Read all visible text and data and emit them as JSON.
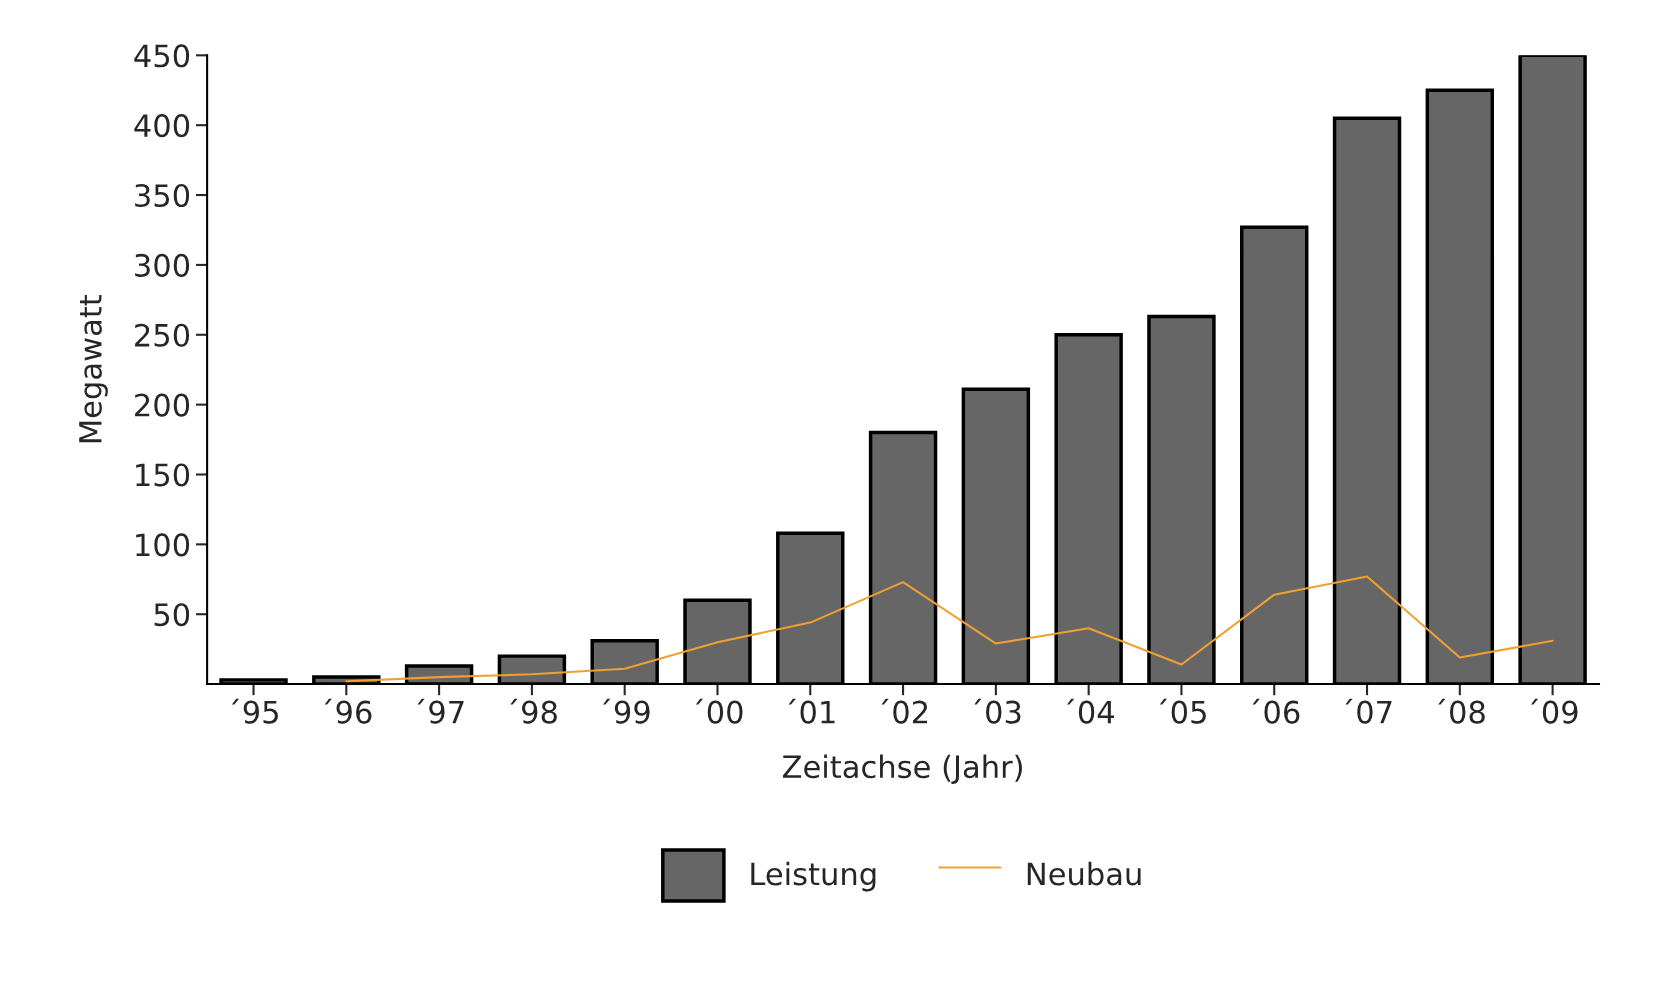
{
  "chart_data": {
    "type": "bar",
    "xlabel": "Zeitachse (Jahr)",
    "ylabel": "Megawatt",
    "categories": [
      "´95",
      "´96",
      "´97",
      "´98",
      "´99",
      "´00",
      "´01",
      "´02",
      "´03",
      "´04",
      "´05",
      "´06",
      "´07",
      "´08",
      "´09"
    ],
    "series": [
      {
        "name": "Leistung",
        "color": "#666666",
        "values": [
          3,
          5,
          13,
          20,
          31,
          60,
          108,
          180,
          211,
          250,
          263,
          327,
          405,
          425,
          450
        ]
      },
      {
        "name": "Neubau",
        "type": "line",
        "color": "#f0a030",
        "values": [
          null,
          2,
          5,
          7,
          11,
          30,
          44,
          73,
          29,
          40,
          14,
          64,
          77,
          19,
          31
        ]
      }
    ],
    "ylim": [
      0,
      450
    ],
    "yticks": [
      50,
      100,
      150,
      200,
      250,
      300,
      350,
      400,
      450
    ],
    "grid": false,
    "legend": "bottom"
  }
}
